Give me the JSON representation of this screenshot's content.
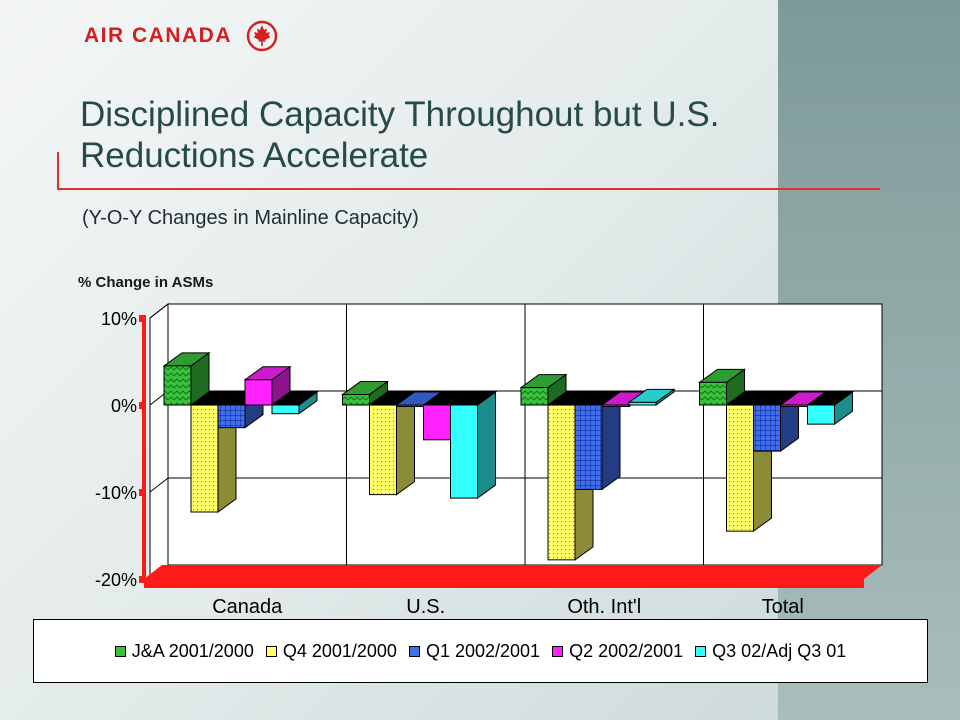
{
  "brand": {
    "name": "AIR CANADA",
    "logo_icon": "maple-leaf-roundel-icon",
    "color": "#d21f1f"
  },
  "slide": {
    "title": "Disciplined Capacity Throughout but U.S. Reductions Accelerate",
    "subtitle": "(Y-O-Y Changes in Mainline Capacity)"
  },
  "chart_data": {
    "type": "bar",
    "ylabel": "% Change in ASMs",
    "ylim": [
      -20,
      10
    ],
    "yticks": [
      10,
      0,
      -10,
      -20
    ],
    "ytick_labels": [
      "10%",
      "0%",
      "-10%",
      "-20%"
    ],
    "grid": true,
    "legend_position": "bottom",
    "categories": [
      "Canada",
      "U.S.",
      "Oth. Int'l",
      "Total"
    ],
    "series": [
      {
        "name": "J&A 2001/2000",
        "color": "#39c33c",
        "values": [
          4.5,
          1.2,
          2.0,
          2.6
        ]
      },
      {
        "name": "Q4 2001/2000",
        "color": "#ffff66",
        "values": [
          -12.3,
          -10.3,
          -17.8,
          -14.5
        ]
      },
      {
        "name": "Q1 2002/2001",
        "color": "#3f6ff0",
        "values": [
          -2.6,
          0,
          -9.7,
          -5.3
        ]
      },
      {
        "name": "Q2 2002/2001",
        "color": "#ff22ff",
        "values": [
          2.9,
          -4.0,
          0,
          0
        ]
      },
      {
        "name": "Q3 02/Adj Q3 01",
        "color": "#33ffff",
        "values": [
          -1.0,
          -10.7,
          0.3,
          -2.2
        ]
      }
    ]
  }
}
